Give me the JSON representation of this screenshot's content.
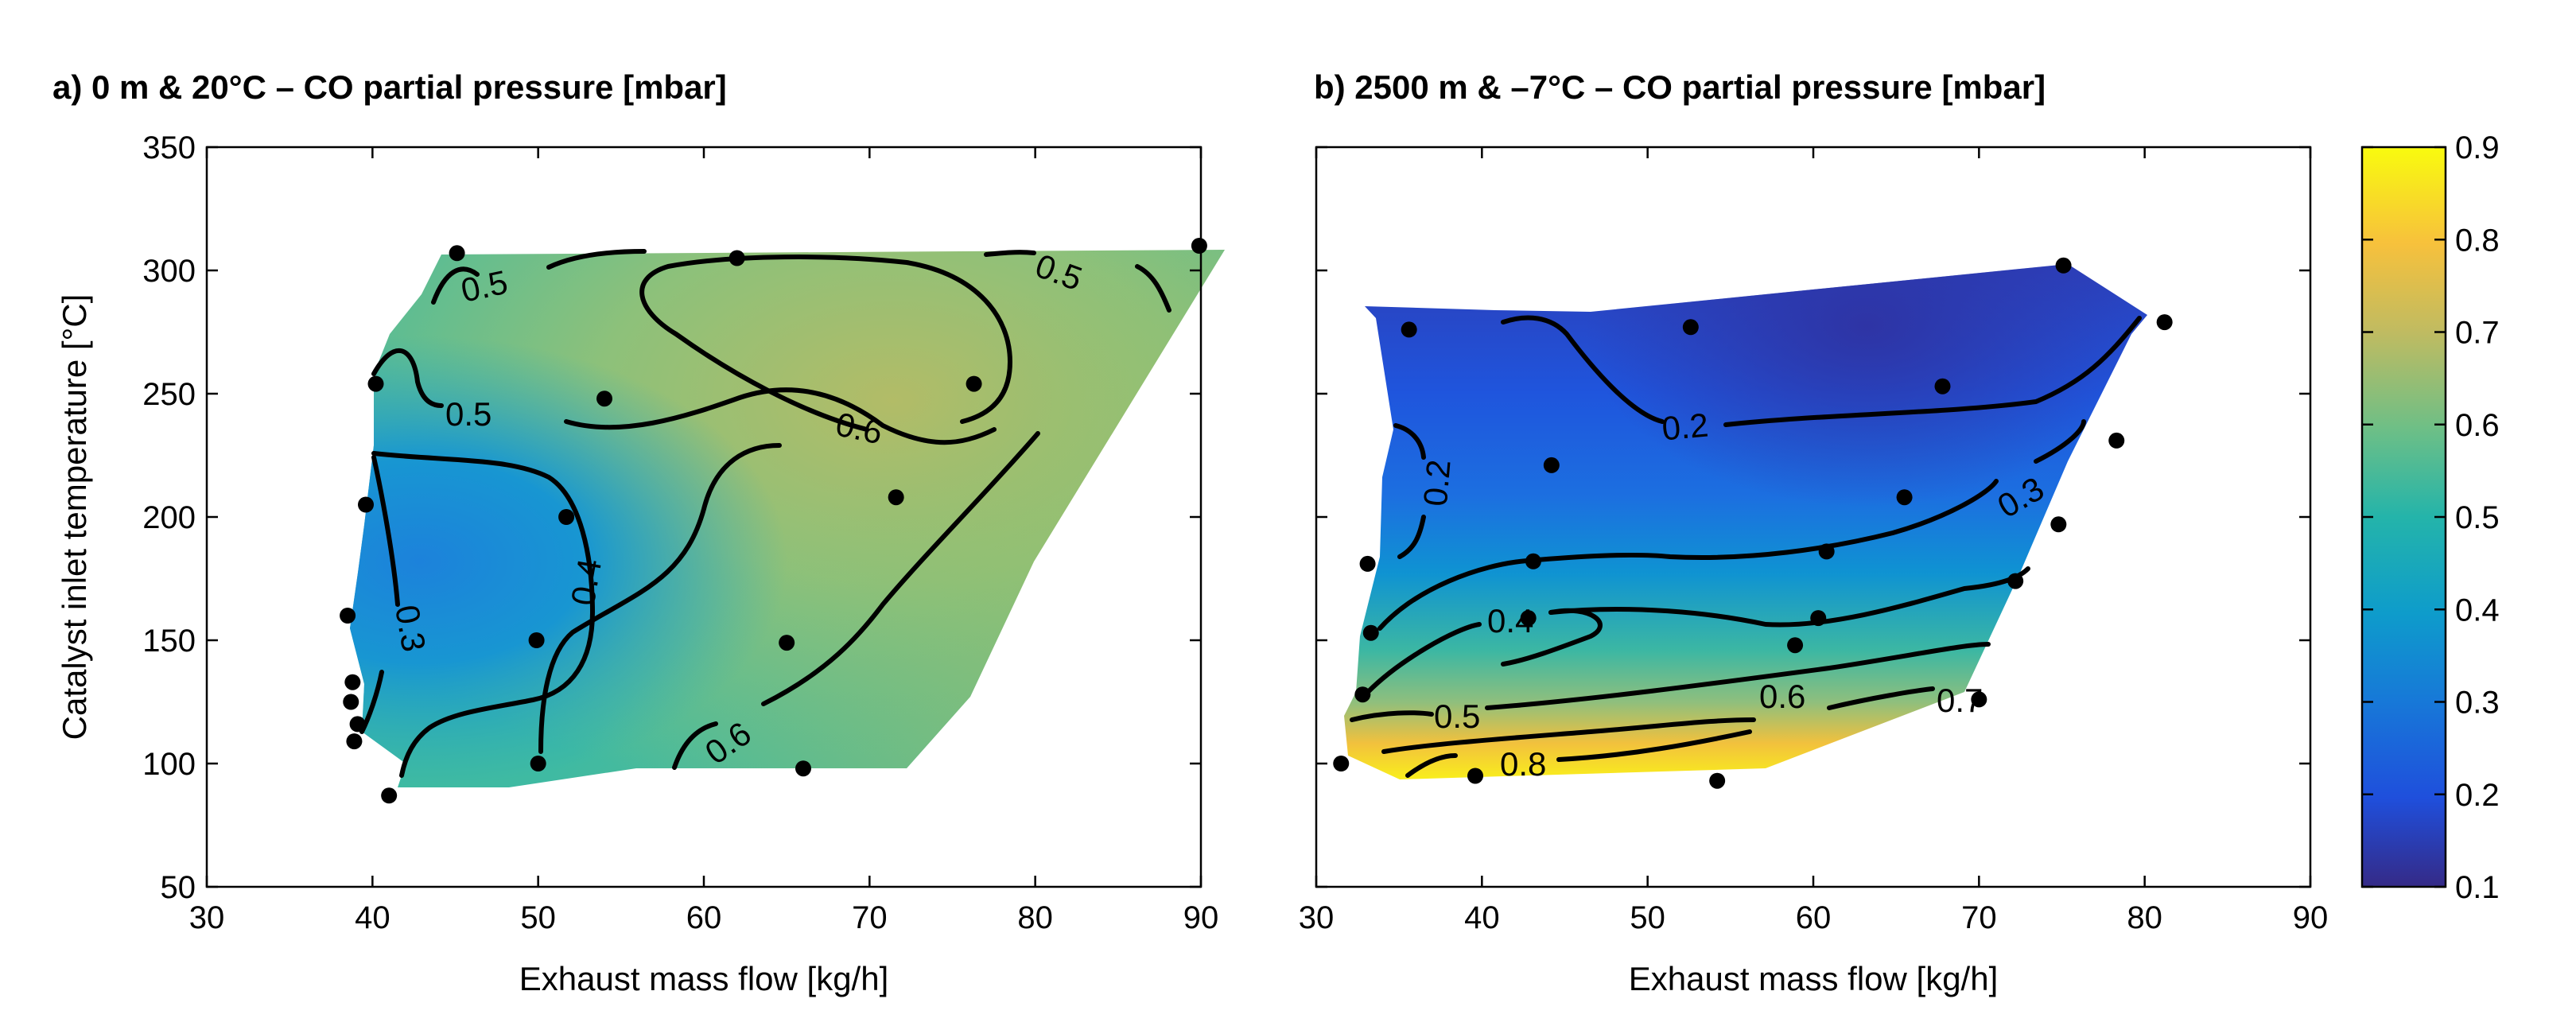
{
  "chart_data": [
    {
      "type": "heatmap",
      "title": "a) 0 m & 20°C – CO partial pressure [mbar]",
      "xlabel": "Exhaust mass flow [kg/h]",
      "ylabel": "Catalyst inlet temperature [°C]",
      "xlim": [
        30,
        90
      ],
      "ylim": [
        50,
        350
      ],
      "xticks": [
        "30",
        "40",
        "50",
        "60",
        "70",
        "80",
        "90"
      ],
      "yticks": [
        "50",
        "100",
        "150",
        "200",
        "250",
        "300",
        "350"
      ],
      "contour_labels": [
        "0.5",
        "0.5",
        "0.5",
        "0.6",
        "0.3",
        "0.4",
        "0.6"
      ],
      "points": [
        [
          41.0,
          87
        ],
        [
          38.9,
          109
        ],
        [
          39.1,
          116
        ],
        [
          38.7,
          125
        ],
        [
          38.8,
          133
        ],
        [
          38.5,
          160
        ],
        [
          39.6,
          205
        ],
        [
          40.2,
          254
        ],
        [
          45.1,
          307
        ],
        [
          62.0,
          305
        ],
        [
          54.0,
          248
        ],
        [
          51.7,
          200
        ],
        [
          49.9,
          150
        ],
        [
          50.0,
          100
        ],
        [
          65.0,
          149
        ],
        [
          66.0,
          98
        ],
        [
          71.6,
          208
        ],
        [
          76.3,
          254
        ],
        [
          89.9,
          310
        ]
      ]
    },
    {
      "type": "heatmap",
      "title": "b) 2500 m & –7°C – CO partial pressure [mbar]",
      "xlabel": "Exhaust mass flow [kg/h]",
      "xlim": [
        30,
        90
      ],
      "ylim": [
        50,
        350
      ],
      "xticks": [
        "30",
        "40",
        "50",
        "60",
        "70",
        "80",
        "90"
      ],
      "contour_labels": [
        "0.2",
        "0.2",
        "0.3",
        "0.4",
        "0.5",
        "0.6",
        "0.7",
        "0.8"
      ],
      "points": [
        [
          31.5,
          100
        ],
        [
          32.8,
          128
        ],
        [
          33.3,
          153
        ],
        [
          33.1,
          181
        ],
        [
          35.6,
          276
        ],
        [
          39.6,
          95
        ],
        [
          42.8,
          159
        ],
        [
          43.1,
          182
        ],
        [
          44.2,
          221
        ],
        [
          52.6,
          277
        ],
        [
          54.2,
          93
        ],
        [
          58.9,
          148
        ],
        [
          60.3,
          159
        ],
        [
          60.8,
          186
        ],
        [
          65.5,
          208
        ],
        [
          67.8,
          253
        ],
        [
          70.0,
          126
        ],
        [
          72.2,
          174
        ],
        [
          74.8,
          197
        ],
        [
          75.1,
          302
        ],
        [
          78.3,
          231
        ],
        [
          81.2,
          279
        ]
      ]
    }
  ],
  "colorbar": {
    "ticks": [
      "0.9",
      "0.8",
      "0.7",
      "0.6",
      "0.5",
      "0.4",
      "0.3",
      "0.2",
      "0.1"
    ],
    "min": 0.1,
    "max": 0.9
  }
}
